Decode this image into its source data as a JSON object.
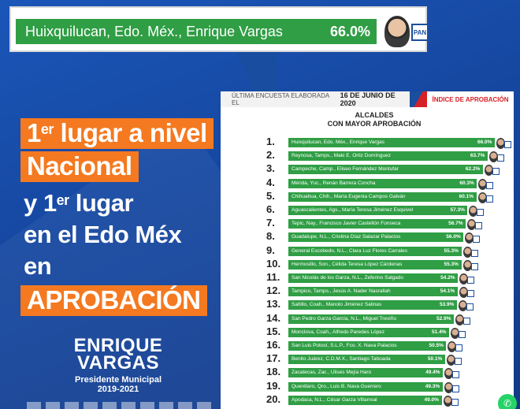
{
  "banner": {
    "label": "Huixquilucan, Edo. Méx., Enrique Vargas",
    "value": "66.0%",
    "party_logo_text": "PAN"
  },
  "headline": {
    "line1_pre": "1",
    "line1_sup": "er",
    "line1_post": " lugar a nivel",
    "line2": "Nacional",
    "line3_pre": "y 1",
    "line3_sup": "er",
    "line3_post": " lugar",
    "line4": "en el Edo Méx",
    "line5": "en",
    "line6": "APROBACIÓN"
  },
  "candidate": {
    "first": "ENRIQUE",
    "last": "VARGAS",
    "role": "Presidente Municipal",
    "years": "2019-2021"
  },
  "panel": {
    "header_prefix": "ÚLTIMA ENCUESTA ELABORADA EL",
    "header_date": "16 DE JUNIO DE 2020",
    "header_right": "ÍNDICE DE APROBACIÓN",
    "title_line1": "ALCALDES",
    "title_line2": "CON MAYOR APROBACIÓN"
  },
  "colors": {
    "bar": "#2f9e44",
    "accent": "#f47920",
    "background": "#1a56b8"
  },
  "icons": {
    "contact": "whatsapp-icon"
  },
  "chart_data": {
    "type": "bar",
    "orientation": "horizontal",
    "title": "ALCALDES CON MAYOR APROBACIÓN",
    "ranks": [
      "1.",
      "2.",
      "3.",
      "4.",
      "5.",
      "6.",
      "7.",
      "8.",
      "9.",
      "10.",
      "11.",
      "12.",
      "13.",
      "14.",
      "15.",
      "16.",
      "17.",
      "18.",
      "19.",
      "20."
    ],
    "categories": [
      "Huixquilucan, Edo. Méx., Enrique Vargas",
      "Reynosa, Tamps., Maki E. Ortiz Domínguez",
      "Campeche, Camp., Eliseo Fernández Montufar",
      "Mérida, Yuc., Renán Barrera Concha",
      "Chihuahua, Chih., María Eugenia Campos Galván",
      "Aguascalientes, Ags., María Teresa Jiménez Esquivel",
      "Tepic, Nay., Francisco Javier Castellón Fonseca",
      "Guadalupe, N.L., Cristina Díaz Salazar Palacios",
      "General Escobedo, N.L., Clara Luz Flores Carrales",
      "Hermosillo, Son., Célida Teresa López Cárdenas",
      "San Nicolás de los Garza, N.L., Zeferino Salgado",
      "Tampico, Tamps., Jesús A. Nader Nasrallah",
      "Saltillo, Coah., Manolo Jiménez Salinas",
      "San Pedro Garza García, N.L., Miguel Treviño",
      "Monclova, Coah., Alfredo Paredes López",
      "San Luis Potosí, S.L.P., Fco. X. Nava Palacios",
      "Benito Juárez, C.D.M.X., Santiago Taboada",
      "Zacatecas, Zac., Ulises Mejía Haro",
      "Querétaro, Qro., Luis B. Nava Guerrero",
      "Apodaca, N.L., César Garza Villarreal"
    ],
    "values": [
      66.0,
      63.7,
      62.2,
      60.3,
      60.1,
      57.3,
      56.7,
      56.0,
      55.3,
      55.3,
      54.2,
      54.1,
      53.9,
      52.9,
      51.4,
      50.5,
      50.1,
      49.4,
      49.3,
      49.0
    ],
    "value_labels": [
      "66.0%",
      "63.7%",
      "62.2%",
      "60.3%",
      "60.1%",
      "57.3%",
      "56.7%",
      "56.0%",
      "55.3%",
      "55.3%",
      "54.2%",
      "54.1%",
      "53.9%",
      "52.9%",
      "51.4%",
      "50.5%",
      "50.1%",
      "49.4%",
      "49.3%",
      "49.0%"
    ],
    "xlim": [
      0,
      66
    ],
    "grid": false,
    "legend": "none"
  }
}
